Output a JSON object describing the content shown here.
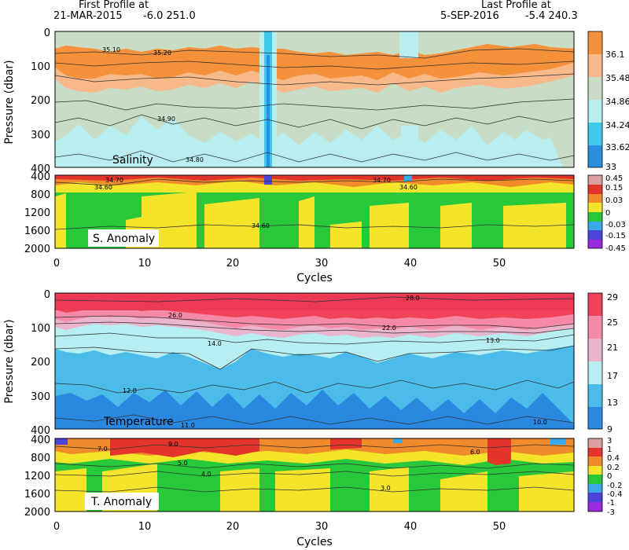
{
  "header": {
    "first_label": "First Profile at",
    "first_date": "21-MAR-2015",
    "first_pos": "-6.0 251.0",
    "last_label": "Last Profile at",
    "last_date": "5-SEP-2016",
    "last_pos": "-5.4 240.3"
  },
  "chart_data": [
    {
      "type": "heatmap",
      "title": "Salinity",
      "ylabel": "Pressure (dbar)",
      "ylim": [
        400,
        0
      ],
      "yticks": [
        "0",
        "100",
        "200",
        "300",
        "400"
      ],
      "xlim": [
        0,
        57
      ],
      "colorbar": [
        "36.1",
        "35.48",
        "34.86",
        "34.24",
        "33.62",
        "33"
      ],
      "colors": [
        "#f5913a",
        "#f8b98a",
        "#c9dcc5",
        "#b8eef0",
        "#3fc8ea",
        "#2a8fe0"
      ],
      "contour_labels": [
        "35.10",
        "35.20",
        "34.90",
        "34.80"
      ]
    },
    {
      "type": "heatmap",
      "title": "S. Anomaly",
      "ylim": [
        2000,
        400
      ],
      "yticks": [
        "400",
        "800",
        "1200",
        "1600",
        "2000"
      ],
      "colorbar": [
        "0.45",
        "0.15",
        "0.03",
        "0",
        "-0.03",
        "-0.15",
        "-0.45"
      ],
      "colors": [
        "#d9a0a0",
        "#e2342a",
        "#f08a2a",
        "#f5e52a",
        "#27c93a",
        "#3aa8ea",
        "#4a45d8",
        "#9a2ae0"
      ],
      "contour_labels": [
        "34.70",
        "34.60",
        "34.60",
        "34.70",
        "34.60"
      ]
    },
    {
      "type": "heatmap",
      "title": "Temperature",
      "ylabel": "Pressure (dbar)",
      "ylim": [
        400,
        0
      ],
      "yticks": [
        "0",
        "100",
        "200",
        "300",
        "400"
      ],
      "xlim": [
        0,
        57
      ],
      "colorbar": [
        "29",
        "25",
        "21",
        "17",
        "13",
        "9"
      ],
      "colors": [
        "#f0435a",
        "#f58aa8",
        "#eab4cc",
        "#b6eef2",
        "#4bbcea",
        "#2a88e0"
      ],
      "contour_labels": [
        "28.0",
        "26.0",
        "22.0",
        "14.0",
        "13.0",
        "12.0",
        "11.0",
        "10.0"
      ]
    },
    {
      "type": "heatmap",
      "title": "T. Anomaly",
      "ylim": [
        2000,
        400
      ],
      "yticks": [
        "400",
        "800",
        "1200",
        "1600",
        "2000"
      ],
      "colorbar": [
        "3",
        "1",
        "0.4",
        "0.2",
        "0",
        "-0.2",
        "-0.4",
        "-1",
        "-3"
      ],
      "colors": [
        "#d9a0a0",
        "#e2342a",
        "#f08a2a",
        "#f5e52a",
        "#27c93a",
        "#3aa8ea",
        "#4a45d8",
        "#9a2ae0"
      ],
      "contour_labels": [
        "9.0",
        "7.0",
        "6.0",
        "5.0",
        "4.0",
        "3.0"
      ]
    }
  ],
  "xaxis": {
    "label": "Cycles",
    "ticks": [
      "0",
      "10",
      "20",
      "30",
      "40",
      "50"
    ]
  }
}
